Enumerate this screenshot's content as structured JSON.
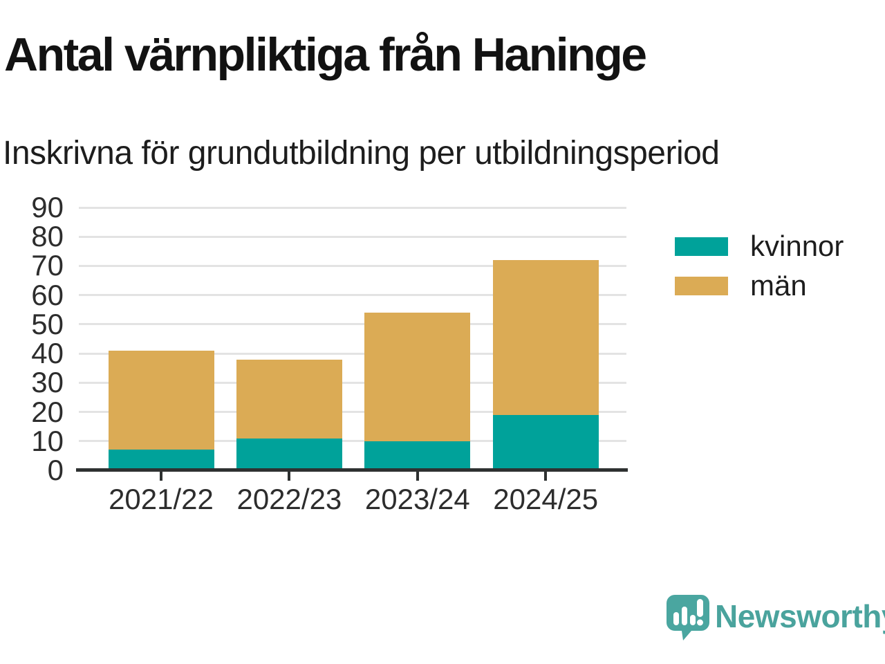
{
  "title": "Antal värnpliktiga från Haninge",
  "subtitle": "Inskrivna för grundutbildning per utbildningsperiod",
  "chart_data": {
    "type": "bar",
    "stacked": true,
    "categories": [
      "2021/22",
      "2022/23",
      "2023/24",
      "2024/25"
    ],
    "series": [
      {
        "name": "kvinnor",
        "values": [
          7,
          11,
          10,
          19
        ],
        "color": "#00a29a"
      },
      {
        "name": "män",
        "values": [
          34,
          27,
          44,
          53
        ],
        "color": "#dbab55"
      }
    ],
    "totals": [
      41,
      38,
      54,
      72
    ],
    "title": "Antal värnpliktiga från Haninge",
    "xlabel": "",
    "ylabel": "",
    "ylim": [
      0,
      90
    ],
    "ytick_step": 10,
    "yticks": [
      0,
      10,
      20,
      30,
      40,
      50,
      60,
      70,
      80,
      90
    ],
    "grid": true,
    "legend_position": "right"
  },
  "legend": {
    "items": [
      {
        "label": "kvinnor",
        "color": "#00a29a"
      },
      {
        "label": "män",
        "color": "#dbab55"
      }
    ]
  },
  "colors": {
    "kvinnor": "#00a29a",
    "man": "#dbab55",
    "gridline": "#e3e3e3",
    "axis": "#2e3131",
    "text": "#1d1d1d",
    "brand": "#4aa39d"
  },
  "branding": {
    "logo_text": "Newsworthy",
    "logo_icon": "newsworthy-speech-bubble-chart-icon"
  }
}
